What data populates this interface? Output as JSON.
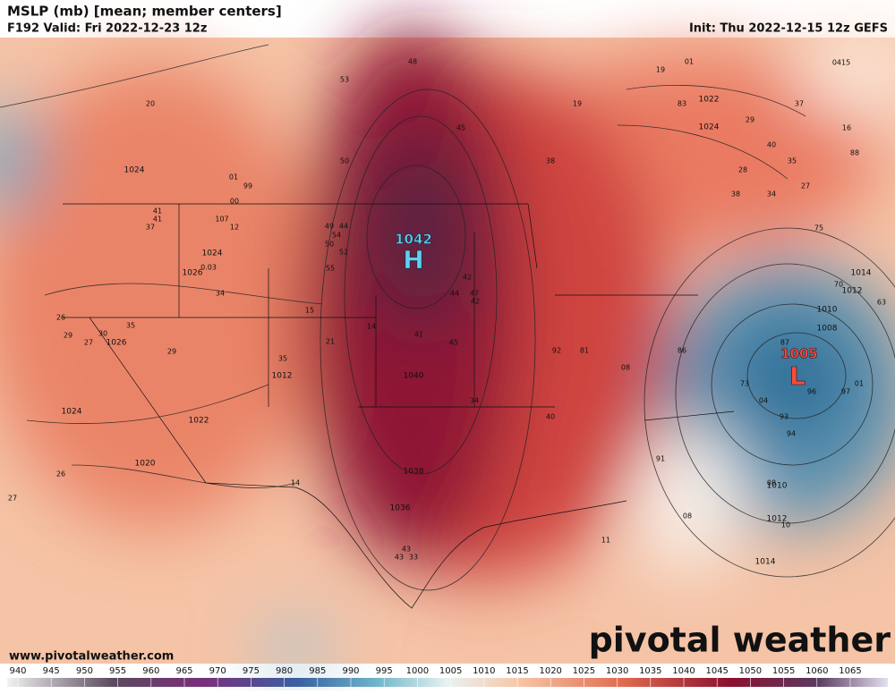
{
  "header": {
    "title": "MSLP (mb) [mean; member centers]",
    "valid": "F192 Valid: Fri 2022-12-23 12z",
    "init": "Init: Thu 2022-12-15 12z GEFS"
  },
  "map": {
    "high": {
      "label": "H",
      "value": 1042
    },
    "low": {
      "label": "L",
      "value": 1005
    },
    "isobar_labels": [
      1024,
      1026,
      1024,
      1026,
      1024,
      1022,
      1020,
      1012,
      1040,
      1038,
      1036,
      1022,
      1024,
      1010,
      1008,
      1014,
      1012,
      1010,
      1012,
      1014
    ],
    "member_labels": [
      "20",
      "01",
      "99",
      "00",
      "41",
      "41",
      "37",
      "107",
      "12",
      "0.03",
      "34",
      "26",
      "29",
      "27",
      "30",
      "35",
      "29",
      "15",
      "35",
      "21",
      "26",
      "27",
      "14",
      "49",
      "44",
      "54",
      "50",
      "52",
      "55",
      "48",
      "53",
      "50",
      "45",
      "19",
      "38",
      "14",
      "41",
      "45",
      "34",
      "40",
      "42",
      "44",
      "47",
      "42",
      "92",
      "81",
      "08",
      "91",
      "08",
      "11",
      "43",
      "43",
      "33",
      "87",
      "04",
      "93",
      "94",
      "96",
      "97",
      "01",
      "73",
      "08",
      "10",
      "86",
      "40",
      "28",
      "38",
      "34",
      "35",
      "29",
      "37",
      "16",
      "88",
      "19",
      "01",
      "0415",
      "83",
      "75",
      "70",
      "63",
      "27"
    ]
  },
  "colorbar": {
    "ticks": [
      940,
      945,
      950,
      955,
      960,
      965,
      970,
      975,
      980,
      985,
      990,
      995,
      1000,
      1005,
      1010,
      1015,
      1020,
      1025,
      1030,
      1035,
      1040,
      1045,
      1050,
      1055,
      1060,
      1065
    ]
  },
  "footer": {
    "url": "www.pivotalweather.com",
    "brand": "pivotal weather"
  }
}
